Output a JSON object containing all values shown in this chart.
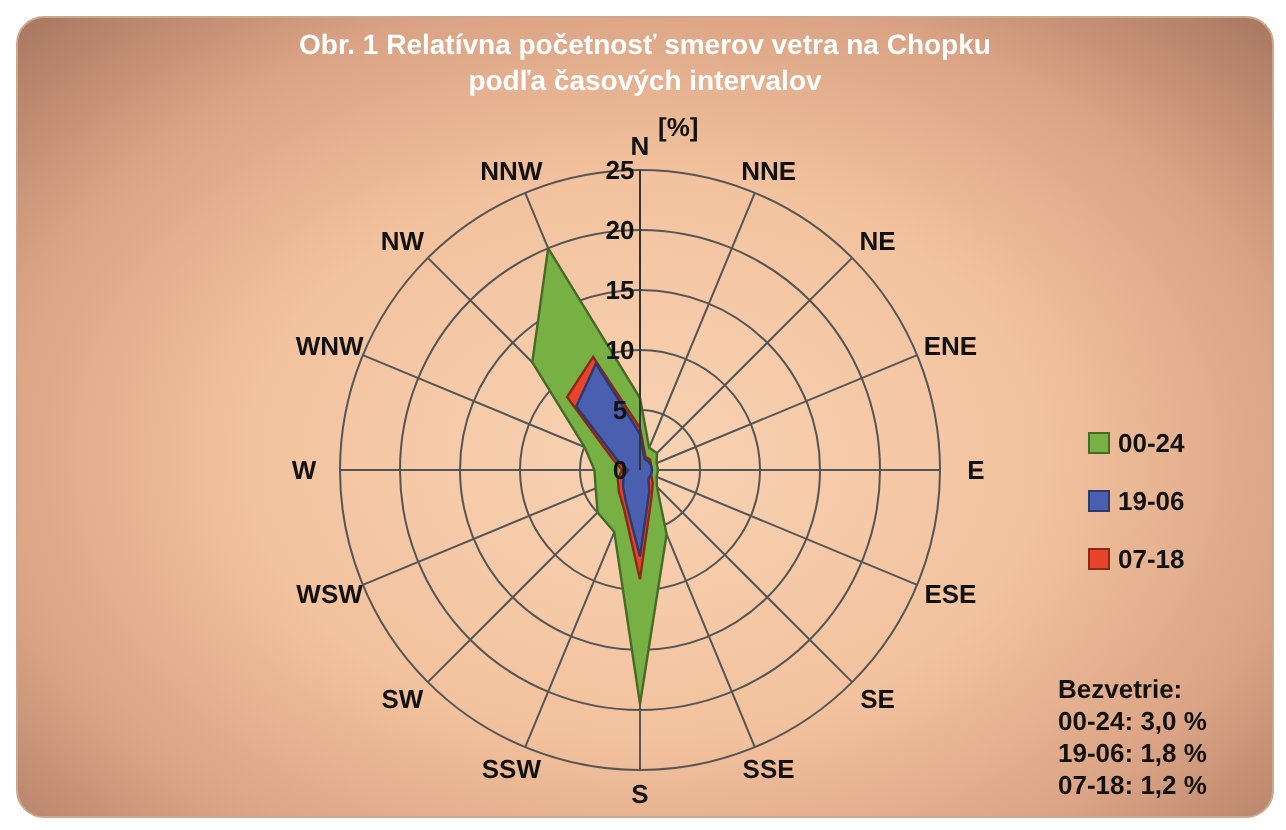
{
  "chart_data": {
    "type": "radar",
    "title": "Obr. 1  Relatívna početnosť smerov vetra na Chopku podľa časových intervalov",
    "ylabel": "[%]",
    "categories": [
      "N",
      "NNE",
      "NE",
      "ENE",
      "E",
      "ESE",
      "SE",
      "SSE",
      "S",
      "SSW",
      "SW",
      "WSW",
      "W",
      "WNW",
      "NW",
      "NNW"
    ],
    "series": [
      {
        "name": "00-24",
        "color": "#77b043",
        "values": [
          6,
          2,
          2,
          1.5,
          1.5,
          1.5,
          2,
          5.8,
          19.5,
          5.6,
          5,
          4,
          3.8,
          5,
          12.7,
          20
        ]
      },
      {
        "name": "19-06",
        "color": "#4a5fb0",
        "values": [
          3,
          1,
          1,
          1,
          1,
          1,
          1,
          2,
          7.2,
          3,
          2,
          1.5,
          1,
          2,
          7.5,
          9.6
        ]
      },
      {
        "name": "07-18",
        "color": "#e8442a",
        "values": [
          3.5,
          1.2,
          1.2,
          1,
          1,
          1,
          1.5,
          2.5,
          9.1,
          3.5,
          2.5,
          2,
          1.5,
          2.5,
          8.6,
          10.2
        ]
      }
    ],
    "ylim": [
      0,
      25
    ],
    "yticks": [
      0,
      5,
      10,
      15,
      20,
      25
    ],
    "grid": true,
    "legend": "right",
    "annotations": [
      "Bezvetrie:",
      "00-24: 3,0 %",
      "19-06: 1,8 %",
      "07-18: 1,2 %"
    ]
  }
}
